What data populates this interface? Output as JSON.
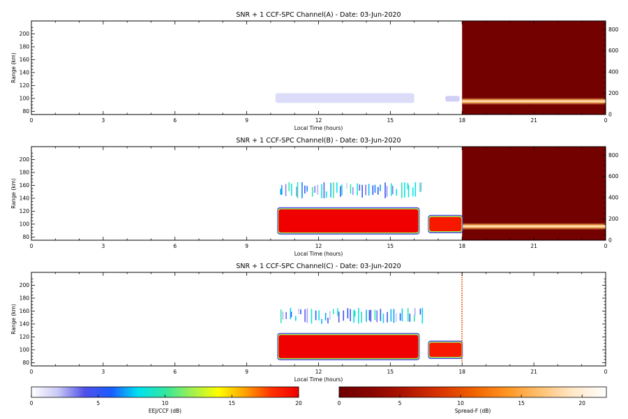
{
  "chart_data": [
    {
      "type": "heatmap",
      "title": "SNR + 1 CCF-SPC Channel(A) - Date: 03-Jun-2020",
      "xlabel": "Local Time (hours)",
      "ylabel": "Range (km)",
      "xlim": [
        0,
        24
      ],
      "ylim": [
        75,
        220
      ],
      "x_ticks": [
        "0",
        "3",
        "6",
        "9",
        "12",
        "15",
        "18",
        "21",
        "0"
      ],
      "y_ticks": [
        80,
        100,
        120,
        140,
        160,
        180,
        200
      ],
      "y2_ticks": [
        0,
        200,
        400,
        600,
        800
      ],
      "y2_lim": [
        0,
        880
      ],
      "regions": [
        {
          "name": "weak echo band",
          "colormap": "EEJ/CCF",
          "t_start": 10.2,
          "t_end": 16.0,
          "r_low": 93,
          "r_high": 108,
          "level_db": 1.5
        },
        {
          "name": "weak echo spots",
          "colormap": "EEJ/CCF",
          "t_start": 17.3,
          "t_end": 17.9,
          "r_low": 95,
          "r_high": 104,
          "level_db": 2
        }
      ],
      "spread_f": {
        "t_start": 18.0,
        "t_end": 24.0,
        "level_db": 0.5,
        "band_r_low": 90,
        "band_r_high": 101,
        "band_level_db": 16
      }
    },
    {
      "type": "heatmap",
      "title": "SNR + 1 CCF-SPC Channel(B) - Date: 03-Jun-2020",
      "xlabel": "Local Time (hours)",
      "ylabel": "Range (km)",
      "xlim": [
        0,
        24
      ],
      "ylim": [
        75,
        220
      ],
      "x_ticks": [
        "0",
        "3",
        "6",
        "9",
        "12",
        "15",
        "18",
        "21",
        "0"
      ],
      "y_ticks": [
        80,
        100,
        120,
        140,
        160,
        180,
        200
      ],
      "y2_ticks": [
        0,
        200,
        400,
        600,
        800
      ],
      "y2_lim": [
        0,
        880
      ],
      "regions": [
        {
          "name": "EEJ saturated block",
          "colormap": "EEJ/CCF",
          "t_start": 10.3,
          "t_end": 16.2,
          "r_low": 86,
          "r_high": 124,
          "level_db": 20
        },
        {
          "name": "post-16h blobs",
          "colormap": "EEJ/CCF",
          "t_start": 16.6,
          "t_end": 18.0,
          "r_low": 88,
          "r_high": 112,
          "level_db": 19
        },
        {
          "name": "upper scattered echoes",
          "colormap": "EEJ/CCF",
          "t_start": 10.3,
          "t_end": 16.4,
          "r_low": 140,
          "r_high": 165,
          "level_db": 6
        }
      ],
      "spread_f": {
        "t_start": 18.0,
        "t_end": 24.0,
        "level_db": 0.5,
        "band_r_low": 91,
        "band_r_high": 102,
        "band_level_db": 16
      }
    },
    {
      "type": "heatmap",
      "title": "SNR + 1 CCF-SPC Channel(C) - Date: 03-Jun-2020",
      "xlabel": "Local Time (hours)",
      "ylabel": "Range (km)",
      "xlim": [
        0,
        24
      ],
      "ylim": [
        75,
        220
      ],
      "x_ticks": [
        "0",
        "3",
        "6",
        "9",
        "12",
        "15",
        "18",
        "21",
        "0"
      ],
      "y_ticks": [
        80,
        100,
        120,
        140,
        160,
        180,
        200
      ],
      "regions": [
        {
          "name": "EEJ saturated block",
          "colormap": "EEJ/CCF",
          "t_start": 10.3,
          "t_end": 16.2,
          "r_low": 86,
          "r_high": 124,
          "level_db": 20
        },
        {
          "name": "post-16h blobs",
          "colormap": "EEJ/CCF",
          "t_start": 16.6,
          "t_end": 18.0,
          "r_low": 88,
          "r_high": 112,
          "level_db": 19
        },
        {
          "name": "upper scattered echoes",
          "colormap": "EEJ/CCF",
          "t_start": 10.3,
          "t_end": 16.4,
          "r_low": 140,
          "r_high": 165,
          "level_db": 6
        },
        {
          "name": "18h edge line",
          "colormap": "Spread-F",
          "t_start": 17.97,
          "t_end": 18.02,
          "r_low": 80,
          "r_high": 220,
          "level_db": 10
        }
      ]
    }
  ],
  "colorbars": [
    {
      "label": "EEJ/CCF (dB)",
      "colormap": "EEJ/CCF",
      "min": 0,
      "max": 20,
      "ticks": [
        0,
        5,
        10,
        15,
        20
      ]
    },
    {
      "label": "Spread-F (dB)",
      "colormap": "Spread-F",
      "min": 0,
      "max": 22,
      "ticks": [
        0,
        5,
        10,
        15,
        20
      ]
    }
  ],
  "colormaps": {
    "EEJ/CCF": [
      "#ffffff",
      "#c8c8f5",
      "#5050ea",
      "#1a5cff",
      "#00e2f0",
      "#32e6a0",
      "#a0f050",
      "#ffff00",
      "#ffa000",
      "#ff3000",
      "#f00000"
    ],
    "Spread-F": [
      "#6e0000",
      "#8a0500",
      "#b01500",
      "#d83300",
      "#f06000",
      "#ff9420",
      "#ffc070",
      "#ffe8c8",
      "#ffffff"
    ]
  }
}
